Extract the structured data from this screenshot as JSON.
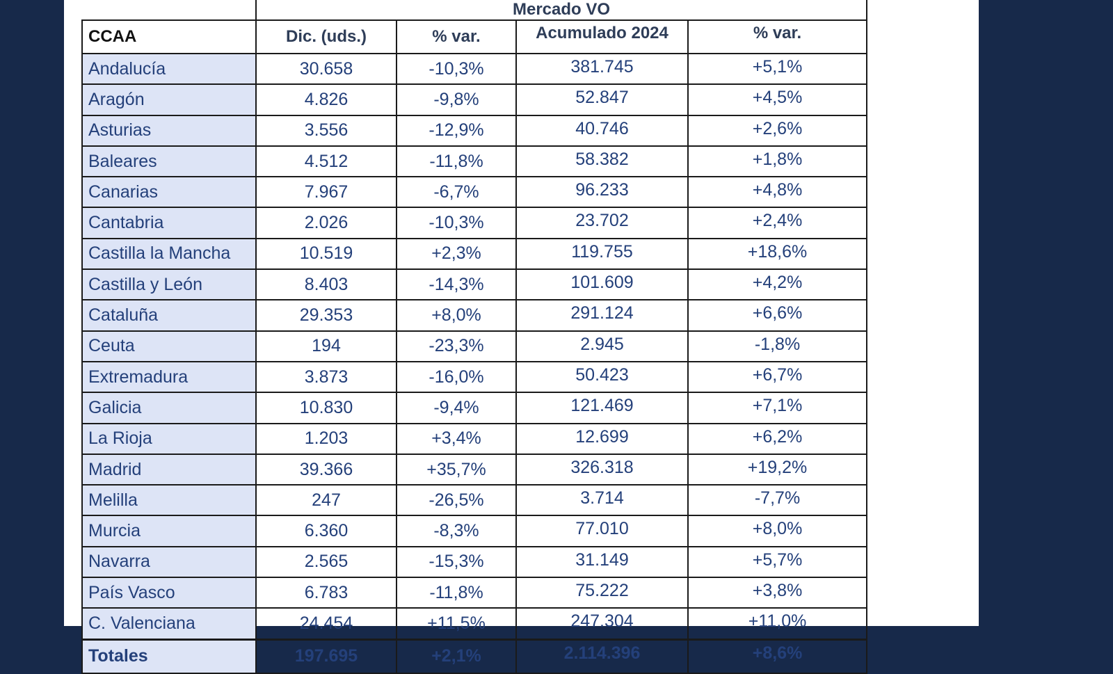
{
  "table": {
    "super_header": "Mercado VO",
    "headers": {
      "ccaa": "CCAA",
      "dic": "Dic. (uds.)",
      "var1": "% var.",
      "acum": "Acumulado 2024",
      "var2": "% var."
    },
    "rows": [
      {
        "ccaa": "Andalucía",
        "dic": "30.658",
        "var1": "-10,3%",
        "acum": "381.745",
        "var2": "+5,1%"
      },
      {
        "ccaa": "Aragón",
        "dic": "4.826",
        "var1": "-9,8%",
        "acum": "52.847",
        "var2": "+4,5%"
      },
      {
        "ccaa": "Asturias",
        "dic": "3.556",
        "var1": "-12,9%",
        "acum": "40.746",
        "var2": "+2,6%"
      },
      {
        "ccaa": "Baleares",
        "dic": "4.512",
        "var1": "-11,8%",
        "acum": "58.382",
        "var2": "+1,8%"
      },
      {
        "ccaa": "Canarias",
        "dic": "7.967",
        "var1": "-6,7%",
        "acum": "96.233",
        "var2": "+4,8%"
      },
      {
        "ccaa": "Cantabria",
        "dic": "2.026",
        "var1": "-10,3%",
        "acum": "23.702",
        "var2": "+2,4%"
      },
      {
        "ccaa": "Castilla la Mancha",
        "dic": "10.519",
        "var1": "+2,3%",
        "acum": "119.755",
        "var2": "+18,6%"
      },
      {
        "ccaa": "Castilla y León",
        "dic": "8.403",
        "var1": "-14,3%",
        "acum": "101.609",
        "var2": "+4,2%"
      },
      {
        "ccaa": "Cataluña",
        "dic": "29.353",
        "var1": "+8,0%",
        "acum": "291.124",
        "var2": "+6,6%"
      },
      {
        "ccaa": "Ceuta",
        "dic": "194",
        "var1": "-23,3%",
        "acum": "2.945",
        "var2": "-1,8%"
      },
      {
        "ccaa": "Extremadura",
        "dic": "3.873",
        "var1": "-16,0%",
        "acum": "50.423",
        "var2": "+6,7%"
      },
      {
        "ccaa": "Galicia",
        "dic": "10.830",
        "var1": "-9,4%",
        "acum": "121.469",
        "var2": "+7,1%"
      },
      {
        "ccaa": "La Rioja",
        "dic": "1.203",
        "var1": "+3,4%",
        "acum": "12.699",
        "var2": "+6,2%"
      },
      {
        "ccaa": "Madrid",
        "dic": "39.366",
        "var1": "+35,7%",
        "acum": "326.318",
        "var2": "+19,2%"
      },
      {
        "ccaa": "Melilla",
        "dic": "247",
        "var1": "-26,5%",
        "acum": "3.714",
        "var2": "-7,7%"
      },
      {
        "ccaa": "Murcia",
        "dic": "6.360",
        "var1": "-8,3%",
        "acum": "77.010",
        "var2": "+8,0%"
      },
      {
        "ccaa": "Navarra",
        "dic": "2.565",
        "var1": "-15,3%",
        "acum": "31.149",
        "var2": "+5,7%"
      },
      {
        "ccaa": "País Vasco",
        "dic": "6.783",
        "var1": "-11,8%",
        "acum": "75.222",
        "var2": "+3,8%"
      },
      {
        "ccaa": "C. Valenciana",
        "dic": "24.454",
        "var1": "+11,5%",
        "acum": "247.304",
        "var2": "+11,0%"
      }
    ],
    "totals": {
      "ccaa": "Totales",
      "dic": "197.695",
      "var1": "+2,1%",
      "acum": "2.114.396",
      "var2": "+8,6%"
    }
  },
  "colors": {
    "page_background": "#17294a",
    "ccaa_column_fill": "#dde4f6",
    "text": "#24407a"
  }
}
